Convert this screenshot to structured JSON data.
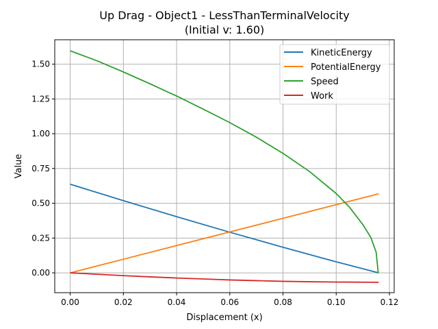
{
  "chart_data": {
    "type": "line",
    "title": "Up Drag - Object1 - LessThanTerminalVelocity",
    "subtitle": "(Initial v: 1.60)",
    "xlabel": "Displacement (x)",
    "ylabel": "Value",
    "xlim": [
      -0.0058,
      0.1218
    ],
    "ylim": [
      -0.1425,
      1.6755
    ],
    "xticks": [
      0.0,
      0.02,
      0.04,
      0.06,
      0.08,
      0.1,
      0.12
    ],
    "xtick_labels": [
      "0.00",
      "0.02",
      "0.04",
      "0.06",
      "0.08",
      "0.10",
      "0.12"
    ],
    "yticks": [
      0.0,
      0.25,
      0.5,
      0.75,
      1.0,
      1.25,
      1.5
    ],
    "ytick_labels": [
      "0.00",
      "0.25",
      "0.50",
      "0.75",
      "1.00",
      "1.25",
      "1.50"
    ],
    "grid": true,
    "legend_position": "top-right",
    "series": [
      {
        "name": "KineticEnergy",
        "color": "#1f77b4",
        "points": [
          [
            0.0,
            0.637
          ],
          [
            0.02,
            0.519
          ],
          [
            0.04,
            0.404
          ],
          [
            0.06,
            0.292
          ],
          [
            0.08,
            0.184
          ],
          [
            0.1,
            0.079
          ],
          [
            0.116,
            0.0
          ]
        ]
      },
      {
        "name": "PotentialEnergy",
        "color": "#ff7f0e",
        "points": [
          [
            0.0,
            0.0
          ],
          [
            0.02,
            0.098
          ],
          [
            0.04,
            0.196
          ],
          [
            0.06,
            0.294
          ],
          [
            0.08,
            0.392
          ],
          [
            0.1,
            0.49
          ],
          [
            0.116,
            0.568
          ]
        ]
      },
      {
        "name": "Speed",
        "color": "#2ca02c",
        "points": [
          [
            0.0,
            1.596
          ],
          [
            0.01,
            1.525
          ],
          [
            0.02,
            1.444
          ],
          [
            0.03,
            1.359
          ],
          [
            0.04,
            1.271
          ],
          [
            0.05,
            1.177
          ],
          [
            0.06,
            1.08
          ],
          [
            0.07,
            0.975
          ],
          [
            0.08,
            0.859
          ],
          [
            0.09,
            0.728
          ],
          [
            0.1,
            0.57
          ],
          [
            0.105,
            0.472
          ],
          [
            0.11,
            0.347
          ],
          [
            0.113,
            0.255
          ],
          [
            0.115,
            0.15
          ],
          [
            0.1158,
            0.0
          ]
        ]
      },
      {
        "name": "Work",
        "color": "#d62728",
        "points": [
          [
            0.0,
            0.0
          ],
          [
            0.01,
            -0.01
          ],
          [
            0.02,
            -0.02
          ],
          [
            0.03,
            -0.029
          ],
          [
            0.04,
            -0.037
          ],
          [
            0.05,
            -0.044
          ],
          [
            0.06,
            -0.051
          ],
          [
            0.07,
            -0.056
          ],
          [
            0.08,
            -0.061
          ],
          [
            0.09,
            -0.064
          ],
          [
            0.1,
            -0.066
          ],
          [
            0.116,
            -0.068
          ]
        ]
      }
    ]
  }
}
